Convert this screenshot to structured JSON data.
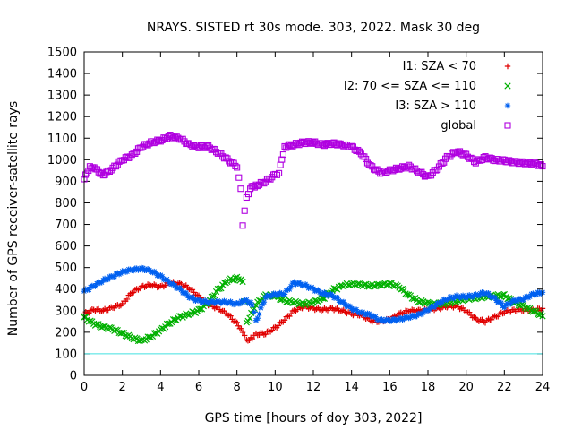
{
  "chart_data": {
    "type": "scatter",
    "title": "NRAYS. SISTED rt 30s mode. 303, 2022. Mask 30 deg",
    "xlabel": "GPS time [hours of doy 303, 2022]",
    "ylabel": "Number of GPS receiver-satellite rays",
    "xlim": [
      0,
      24
    ],
    "ylim": [
      0,
      1500
    ],
    "xticks": [
      0,
      2,
      4,
      6,
      8,
      10,
      12,
      14,
      16,
      18,
      20,
      22,
      24
    ],
    "yticks": [
      0,
      100,
      200,
      300,
      400,
      500,
      600,
      700,
      800,
      900,
      1000,
      1100,
      1200,
      1300,
      1400,
      1500
    ],
    "reference_line": {
      "y": 100,
      "color": "#40e0e0"
    },
    "legend_position": "top-right",
    "series": [
      {
        "name": "I1: SZA < 70",
        "marker": "+",
        "color": "#e00000",
        "points": [
          [
            0,
            285
          ],
          [
            0.5,
            305
          ],
          [
            1,
            300
          ],
          [
            1.5,
            315
          ],
          [
            2,
            330
          ],
          [
            2.5,
            385
          ],
          [
            3,
            410
          ],
          [
            3.5,
            420
          ],
          [
            4,
            410
          ],
          [
            4.5,
            430
          ],
          [
            5,
            425
          ],
          [
            5.5,
            405
          ],
          [
            6,
            365
          ],
          [
            6.5,
            330
          ],
          [
            7,
            310
          ],
          [
            7.5,
            285
          ],
          [
            8,
            240
          ],
          [
            8.3,
            205
          ],
          [
            8.5,
            160
          ],
          [
            8.8,
            175
          ],
          [
            9,
            190
          ],
          [
            9.5,
            195
          ],
          [
            10,
            220
          ],
          [
            10.5,
            260
          ],
          [
            11,
            300
          ],
          [
            11.5,
            320
          ],
          [
            12,
            310
          ],
          [
            12.5,
            305
          ],
          [
            13,
            310
          ],
          [
            13.5,
            300
          ],
          [
            14,
            285
          ],
          [
            14.5,
            280
          ],
          [
            15,
            255
          ],
          [
            15.5,
            250
          ],
          [
            16,
            260
          ],
          [
            16.5,
            285
          ],
          [
            17,
            300
          ],
          [
            17.5,
            300
          ],
          [
            18,
            305
          ],
          [
            18.5,
            310
          ],
          [
            19,
            320
          ],
          [
            19.5,
            320
          ],
          [
            20,
            300
          ],
          [
            20.5,
            260
          ],
          [
            21,
            250
          ],
          [
            21.5,
            270
          ],
          [
            22,
            295
          ],
          [
            22.5,
            300
          ],
          [
            23,
            305
          ],
          [
            23.5,
            300
          ],
          [
            24,
            310
          ]
        ]
      },
      {
        "name": "I2: 70 <= SZA <= 110",
        "marker": "x",
        "color": "#00b000",
        "points": [
          [
            0,
            270
          ],
          [
            0.5,
            240
          ],
          [
            1,
            225
          ],
          [
            1.5,
            215
          ],
          [
            2,
            195
          ],
          [
            2.5,
            175
          ],
          [
            3,
            160
          ],
          [
            3.5,
            180
          ],
          [
            4,
            210
          ],
          [
            4.5,
            245
          ],
          [
            5,
            270
          ],
          [
            5.5,
            285
          ],
          [
            6,
            300
          ],
          [
            6.5,
            340
          ],
          [
            7,
            395
          ],
          [
            7.5,
            440
          ],
          [
            8,
            450
          ],
          [
            8.3,
            440
          ],
          [
            8.5,
            240
          ],
          [
            9,
            330
          ],
          [
            9.5,
            370
          ],
          [
            10,
            370
          ],
          [
            10.5,
            345
          ],
          [
            11,
            340
          ],
          [
            11.5,
            330
          ],
          [
            12,
            340
          ],
          [
            12.5,
            355
          ],
          [
            13,
            395
          ],
          [
            13.5,
            415
          ],
          [
            14,
            425
          ],
          [
            14.5,
            420
          ],
          [
            15,
            415
          ],
          [
            15.5,
            420
          ],
          [
            16,
            425
          ],
          [
            16.5,
            410
          ],
          [
            17,
            370
          ],
          [
            17.5,
            345
          ],
          [
            18,
            335
          ],
          [
            18.5,
            330
          ],
          [
            19,
            335
          ],
          [
            19.5,
            345
          ],
          [
            20,
            355
          ],
          [
            20.5,
            360
          ],
          [
            21,
            365
          ],
          [
            21.5,
            370
          ],
          [
            22,
            370
          ],
          [
            22.5,
            340
          ],
          [
            23,
            320
          ],
          [
            23.5,
            300
          ],
          [
            24,
            275
          ]
        ]
      },
      {
        "name": "I3: SZA > 110",
        "marker": "*",
        "color": "#0060f0",
        "points": [
          [
            0,
            390
          ],
          [
            0.5,
            415
          ],
          [
            1,
            440
          ],
          [
            1.5,
            460
          ],
          [
            2,
            480
          ],
          [
            2.5,
            490
          ],
          [
            3,
            495
          ],
          [
            3.5,
            485
          ],
          [
            4,
            460
          ],
          [
            4.5,
            430
          ],
          [
            5,
            400
          ],
          [
            5.5,
            365
          ],
          [
            6,
            345
          ],
          [
            6.5,
            340
          ],
          [
            7,
            340
          ],
          [
            7.5,
            340
          ],
          [
            8,
            330
          ],
          [
            8.3,
            345
          ],
          [
            8.5,
            345
          ],
          [
            8.8,
            330
          ],
          [
            9,
            250
          ],
          [
            9.5,
            365
          ],
          [
            10,
            375
          ],
          [
            10.5,
            380
          ],
          [
            11,
            430
          ],
          [
            11.5,
            420
          ],
          [
            12,
            400
          ],
          [
            12.5,
            380
          ],
          [
            13,
            370
          ],
          [
            13.5,
            340
          ],
          [
            14,
            310
          ],
          [
            14.5,
            290
          ],
          [
            15,
            280
          ],
          [
            15.5,
            255
          ],
          [
            16,
            255
          ],
          [
            16.5,
            260
          ],
          [
            17,
            270
          ],
          [
            17.5,
            280
          ],
          [
            18,
            305
          ],
          [
            18.5,
            330
          ],
          [
            19,
            355
          ],
          [
            19.5,
            365
          ],
          [
            20,
            365
          ],
          [
            20.5,
            370
          ],
          [
            21,
            385
          ],
          [
            21.5,
            355
          ],
          [
            22,
            320
          ],
          [
            22.5,
            345
          ],
          [
            23,
            355
          ],
          [
            23.5,
            375
          ],
          [
            24,
            385
          ]
        ]
      },
      {
        "name": "global",
        "marker": "square",
        "color": "#b000e0",
        "points": [
          [
            0,
            910
          ],
          [
            0.3,
            970
          ],
          [
            0.6,
            955
          ],
          [
            1,
            930
          ],
          [
            1.5,
            960
          ],
          [
            2,
            1000
          ],
          [
            2.5,
            1020
          ],
          [
            3,
            1060
          ],
          [
            3.5,
            1080
          ],
          [
            4,
            1090
          ],
          [
            4.5,
            1110
          ],
          [
            5,
            1100
          ],
          [
            5.5,
            1070
          ],
          [
            6,
            1060
          ],
          [
            6.5,
            1060
          ],
          [
            7,
            1035
          ],
          [
            7.5,
            1000
          ],
          [
            8,
            970
          ],
          [
            8.2,
            860
          ],
          [
            8.3,
            700
          ],
          [
            8.5,
            820
          ],
          [
            8.7,
            870
          ],
          [
            9,
            880
          ],
          [
            9.5,
            900
          ],
          [
            10,
            930
          ],
          [
            10.2,
            940
          ],
          [
            10.5,
            1060
          ],
          [
            11,
            1070
          ],
          [
            11.5,
            1080
          ],
          [
            12,
            1080
          ],
          [
            12.5,
            1070
          ],
          [
            13,
            1075
          ],
          [
            13.5,
            1070
          ],
          [
            14,
            1060
          ],
          [
            14.5,
            1030
          ],
          [
            15,
            970
          ],
          [
            15.5,
            940
          ],
          [
            16,
            950
          ],
          [
            16.5,
            960
          ],
          [
            17,
            970
          ],
          [
            17.5,
            945
          ],
          [
            18,
            920
          ],
          [
            18.5,
            960
          ],
          [
            19,
            1010
          ],
          [
            19.5,
            1040
          ],
          [
            20,
            1020
          ],
          [
            20.5,
            990
          ],
          [
            21,
            1010
          ],
          [
            21.5,
            1000
          ],
          [
            22,
            995
          ],
          [
            22.5,
            990
          ],
          [
            23,
            985
          ],
          [
            23.5,
            985
          ],
          [
            24,
            970
          ]
        ]
      }
    ]
  }
}
